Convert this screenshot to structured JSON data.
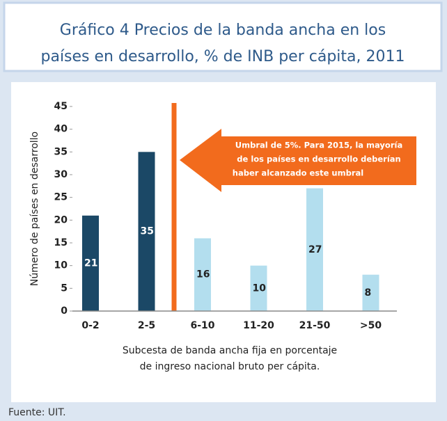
{
  "chart_data": {
    "type": "bar",
    "title": [
      "Gráfico 4 Precios de la banda ancha en los",
      "países en desarrollo, % de INB per cápita, 2011"
    ],
    "categories": [
      "0-2",
      "2-5",
      "6-10",
      "11-20",
      "21-50",
      ">50"
    ],
    "values": [
      21,
      35,
      16,
      10,
      27,
      8
    ],
    "colors": [
      "#1b4866",
      "#1b4866",
      "#b3deee",
      "#b3deee",
      "#b3deee",
      "#b3deee"
    ],
    "ylim": [
      0,
      45
    ],
    "yticks": [
      0,
      5,
      10,
      15,
      20,
      25,
      30,
      35,
      40,
      45
    ],
    "grid": false,
    "y_label": "Número de países en desarrollo",
    "x_label": [
      "Subcesta de banda ancha fija en porcentaje",
      "de ingreso nacional bruto per cápita."
    ],
    "annotation": [
      "Umbral de 5%. Para 2015, la mayoría",
      "de los países en desarrollo deberían",
      "haber alcanzado este umbral"
    ],
    "source": "Fuente:  UIT."
  }
}
